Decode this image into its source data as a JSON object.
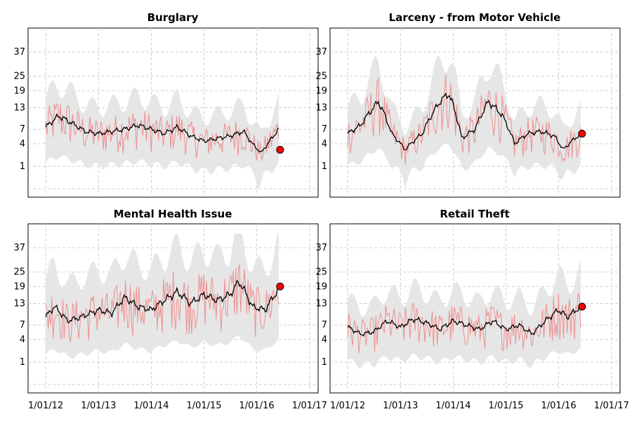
{
  "colors": {
    "raw_series": "#ef6b6b",
    "smoothed_series": "#000000",
    "band": "#e6e6e6",
    "last_point": "#ff0000",
    "grid": "#cfcfcf"
  },
  "chart_data": [
    {
      "type": "line",
      "title": "Burglary",
      "xlabel": "",
      "ylabel": "",
      "y_scale": "sqrt",
      "y_ticks": [
        1,
        4,
        7,
        13,
        19,
        25,
        37
      ],
      "x_ticks": [
        "1/01/12",
        "1/01/13",
        "1/01/14",
        "1/01/15",
        "1/01/16",
        "1/01/17"
      ],
      "show_x_tick_labels": false,
      "grid": true,
      "xlim": [
        "2011-09-01",
        "2017-03-01"
      ],
      "ylim": [
        0,
        45
      ],
      "smoothed_points": [
        [
          "2012-01-01",
          7.5
        ],
        [
          "2012-04-01",
          10.5
        ],
        [
          "2012-07-01",
          8.5
        ],
        [
          "2012-10-01",
          6.5
        ],
        [
          "2013-01-01",
          6
        ],
        [
          "2013-04-01",
          6.5
        ],
        [
          "2013-07-01",
          7
        ],
        [
          "2013-10-01",
          8
        ],
        [
          "2014-01-01",
          7
        ],
        [
          "2014-04-01",
          6
        ],
        [
          "2014-07-01",
          7.5
        ],
        [
          "2014-10-01",
          5.5
        ],
        [
          "2015-01-01",
          4.5
        ],
        [
          "2015-04-01",
          5
        ],
        [
          "2015-07-01",
          5.5
        ],
        [
          "2015-10-01",
          6.5
        ],
        [
          "2015-12-01",
          4
        ],
        [
          "2016-02-01",
          2.5
        ],
        [
          "2016-04-01",
          4.5
        ],
        [
          "2016-06-01",
          7
        ]
      ],
      "last_point": [
        "2016-06-01",
        3
      ],
      "band": {
        "lower": 1,
        "upper": 15
      }
    },
    {
      "type": "line",
      "title": "Larceny - from Motor Vehicle",
      "xlabel": "",
      "ylabel": "",
      "y_scale": "sqrt",
      "y_ticks": [
        1,
        4,
        7,
        13,
        19,
        25,
        37
      ],
      "x_ticks": [
        "1/01/12",
        "1/01/13",
        "1/01/14",
        "1/01/15",
        "1/01/16",
        "1/01/17"
      ],
      "show_x_tick_labels": false,
      "grid": true,
      "xlim": [
        "2011-09-01",
        "2017-03-01"
      ],
      "ylim": [
        0,
        45
      ],
      "smoothed_points": [
        [
          "2012-01-01",
          6
        ],
        [
          "2012-04-01",
          8
        ],
        [
          "2012-08-01",
          15
        ],
        [
          "2012-11-01",
          6
        ],
        [
          "2013-02-01",
          3
        ],
        [
          "2013-06-01",
          6
        ],
        [
          "2013-10-01",
          15
        ],
        [
          "2013-12-01",
          18
        ],
        [
          "2014-03-01",
          5
        ],
        [
          "2014-06-01",
          7
        ],
        [
          "2014-09-01",
          15
        ],
        [
          "2014-12-01",
          11
        ],
        [
          "2015-03-01",
          4
        ],
        [
          "2015-06-01",
          6
        ],
        [
          "2015-09-01",
          6.5
        ],
        [
          "2015-12-01",
          5.5
        ],
        [
          "2016-02-01",
          3
        ],
        [
          "2016-06-01",
          6
        ]
      ],
      "last_point": [
        "2016-06-01",
        6
      ],
      "band": {
        "lower": 1,
        "upper": 25
      }
    },
    {
      "type": "line",
      "title": "Mental Health Issue",
      "xlabel": "",
      "ylabel": "",
      "y_scale": "sqrt",
      "y_ticks": [
        1,
        4,
        7,
        13,
        19,
        25,
        37
      ],
      "x_ticks": [
        "1/01/12",
        "1/01/13",
        "1/01/14",
        "1/01/15",
        "1/01/16",
        "1/01/17"
      ],
      "show_x_tick_labels": true,
      "grid": true,
      "xlim": [
        "2011-09-01",
        "2017-03-01"
      ],
      "ylim": [
        0,
        45
      ],
      "smoothed_points": [
        [
          "2012-01-01",
          9
        ],
        [
          "2012-03-01",
          12
        ],
        [
          "2012-06-01",
          8
        ],
        [
          "2012-09-01",
          9
        ],
        [
          "2013-01-01",
          11
        ],
        [
          "2013-04-01",
          10
        ],
        [
          "2013-07-01",
          15
        ],
        [
          "2013-10-01",
          12
        ],
        [
          "2014-01-01",
          11
        ],
        [
          "2014-04-01",
          14
        ],
        [
          "2014-07-01",
          17
        ],
        [
          "2014-10-01",
          13
        ],
        [
          "2015-01-01",
          16
        ],
        [
          "2015-04-01",
          14
        ],
        [
          "2015-07-01",
          16
        ],
        [
          "2015-09-01",
          21
        ],
        [
          "2015-12-01",
          12
        ],
        [
          "2016-03-01",
          11
        ],
        [
          "2016-06-01",
          18
        ]
      ],
      "last_point": [
        "2016-06-01",
        19
      ],
      "band": {
        "lower": 4,
        "upper": 30
      }
    },
    {
      "type": "line",
      "title": "Retail Theft",
      "xlabel": "",
      "ylabel": "",
      "y_scale": "sqrt",
      "y_ticks": [
        1,
        4,
        7,
        13,
        19,
        25,
        37
      ],
      "x_ticks": [
        "1/01/12",
        "1/01/13",
        "1/01/14",
        "1/01/15",
        "1/01/16",
        "1/01/17"
      ],
      "show_x_tick_labels": true,
      "grid": true,
      "xlim": [
        "2011-09-01",
        "2017-03-01"
      ],
      "ylim": [
        0,
        45
      ],
      "smoothed_points": [
        [
          "2012-01-01",
          6.5
        ],
        [
          "2012-04-01",
          5
        ],
        [
          "2012-07-01",
          5.5
        ],
        [
          "2012-10-01",
          8
        ],
        [
          "2013-01-01",
          6.5
        ],
        [
          "2013-04-01",
          8.5
        ],
        [
          "2013-07-01",
          7.5
        ],
        [
          "2013-10-01",
          6
        ],
        [
          "2014-01-01",
          8
        ],
        [
          "2014-04-01",
          7
        ],
        [
          "2014-07-01",
          6
        ],
        [
          "2014-10-01",
          8
        ],
        [
          "2015-01-01",
          6
        ],
        [
          "2015-04-01",
          7
        ],
        [
          "2015-07-01",
          5
        ],
        [
          "2015-10-01",
          8
        ],
        [
          "2016-01-01",
          11
        ],
        [
          "2016-03-01",
          9
        ],
        [
          "2016-06-01",
          12
        ]
      ],
      "last_point": [
        "2016-06-01",
        12
      ],
      "band": {
        "lower": 1.5,
        "upper": 20
      }
    }
  ]
}
